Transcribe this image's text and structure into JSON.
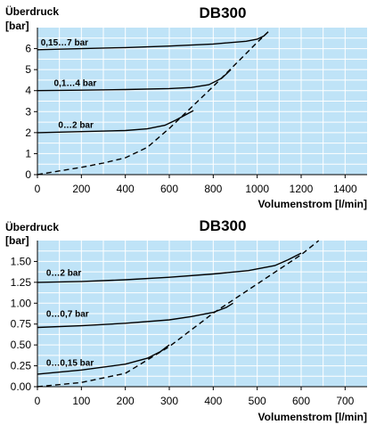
{
  "chart_data": [
    {
      "type": "line",
      "title": "DB300",
      "ylabel_line1": "Überdruck",
      "ylabel_line2": "[bar]",
      "xlabel": "Volumenstrom [l/min]",
      "xlim": [
        0,
        1500
      ],
      "ylim": [
        0,
        7
      ],
      "xticks": [
        0,
        200,
        400,
        600,
        800,
        1000,
        1200,
        1400
      ],
      "xtick_labels": [
        "0",
        "200",
        "400",
        "600",
        "800",
        "1000",
        "1200",
        "1400"
      ],
      "yticks": [
        0,
        1,
        2,
        3,
        4,
        5,
        6
      ],
      "ytick_labels": [
        "0",
        "1",
        "2",
        "3",
        "4",
        "5",
        "6"
      ],
      "grid": true,
      "background_color": "#bfe3f7",
      "grid_color": "#ffffff",
      "series": [
        {
          "name": "0,15…7 bar",
          "style": "solid",
          "x": [
            0,
            200,
            400,
            600,
            800,
            950,
            1000,
            1030,
            1050
          ],
          "y": [
            5.95,
            6.0,
            6.05,
            6.12,
            6.22,
            6.35,
            6.45,
            6.6,
            6.8
          ],
          "label_at": [
            15,
            6.15
          ]
        },
        {
          "name": "0,1…4 bar",
          "style": "solid",
          "x": [
            0,
            200,
            400,
            600,
            700,
            780,
            840,
            880
          ],
          "y": [
            4.0,
            4.02,
            4.05,
            4.1,
            4.15,
            4.28,
            4.6,
            5.0
          ],
          "label_at": [
            75,
            4.22
          ]
        },
        {
          "name": "0…2 bar",
          "style": "solid",
          "x": [
            0,
            200,
            400,
            500,
            580,
            630,
            680,
            710
          ],
          "y": [
            2.0,
            2.05,
            2.1,
            2.18,
            2.35,
            2.6,
            2.88,
            3.05
          ],
          "label_at": [
            95,
            2.22
          ]
        },
        {
          "name": "",
          "style": "dashed",
          "x": [
            0,
            100,
            200,
            300,
            400,
            500,
            600,
            700,
            800,
            900,
            1000,
            1050
          ],
          "y": [
            0.0,
            0.18,
            0.35,
            0.55,
            0.8,
            1.3,
            2.2,
            3.2,
            4.2,
            5.25,
            6.3,
            6.8
          ]
        }
      ]
    },
    {
      "type": "line",
      "title": "DB300",
      "ylabel_line1": "Überdruck",
      "ylabel_line2": "[bar]",
      "xlabel": "Volumenstrom [l/min]",
      "xlim": [
        0,
        750
      ],
      "ylim": [
        0,
        1.75
      ],
      "xticks": [
        0,
        100,
        200,
        300,
        400,
        500,
        600,
        700
      ],
      "xtick_labels": [
        "0",
        "100",
        "200",
        "300",
        "400",
        "500",
        "600",
        "700"
      ],
      "yticks": [
        0,
        0.25,
        0.5,
        0.75,
        1.0,
        1.25,
        1.5
      ],
      "ytick_labels": [
        "0.00",
        "0.25",
        "0.50",
        "0.75",
        "1.00",
        "1.25",
        "1.50"
      ],
      "grid": true,
      "background_color": "#bfe3f7",
      "grid_color": "#ffffff",
      "series": [
        {
          "name": "0…2 bar",
          "style": "solid",
          "x": [
            0,
            100,
            200,
            300,
            400,
            480,
            540,
            570,
            600
          ],
          "y": [
            1.25,
            1.26,
            1.28,
            1.31,
            1.35,
            1.39,
            1.45,
            1.52,
            1.6
          ],
          "label_at": [
            20,
            1.33
          ]
        },
        {
          "name": "0…0,7 bar",
          "style": "solid",
          "x": [
            0,
            100,
            200,
            300,
            350,
            400,
            430,
            445
          ],
          "y": [
            0.71,
            0.73,
            0.76,
            0.8,
            0.84,
            0.89,
            0.95,
            1.0
          ],
          "label_at": [
            20,
            0.84
          ]
        },
        {
          "name": "0…0,15 bar",
          "style": "solid",
          "x": [
            0,
            100,
            200,
            250,
            280,
            300
          ],
          "y": [
            0.15,
            0.2,
            0.27,
            0.34,
            0.42,
            0.5
          ],
          "label_at": [
            20,
            0.25
          ]
        },
        {
          "name": "",
          "style": "dashed",
          "x": [
            0,
            100,
            200,
            300,
            400,
            500,
            600,
            640
          ],
          "y": [
            0.0,
            0.05,
            0.16,
            0.48,
            0.88,
            1.23,
            1.58,
            1.75
          ]
        }
      ]
    }
  ]
}
